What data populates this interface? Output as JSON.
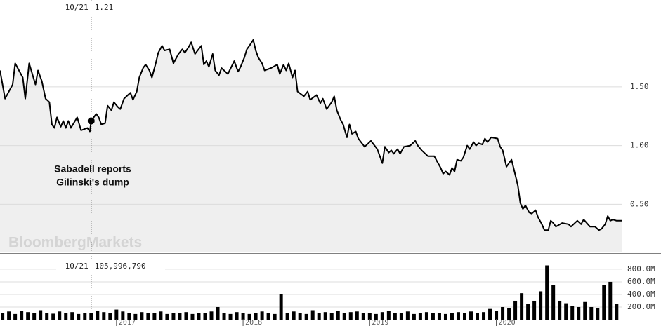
{
  "chart_data": [
    {
      "type": "line",
      "color": "#000000",
      "area_color": "#efefef",
      "grid": true,
      "xlim": [
        2016.08,
        2020.99
      ],
      "ylim": [
        0.09,
        2.24
      ],
      "yticks": [
        {
          "value": 0.5,
          "label": "0.50"
        },
        {
          "value": 1.0,
          "label": "1.00"
        },
        {
          "value": 1.5,
          "label": "1.50"
        }
      ],
      "x": [
        2016.08,
        2016.12,
        2016.18,
        2016.2,
        2016.26,
        2016.28,
        2016.31,
        2016.36,
        2016.38,
        2016.41,
        2016.44,
        2016.47,
        2016.49,
        2016.51,
        2016.53,
        2016.56,
        2016.58,
        2016.6,
        2016.62,
        2016.64,
        2016.69,
        2016.72,
        2016.77,
        2016.79,
        2016.8,
        2016.84,
        2016.86,
        2016.88,
        2016.91,
        2016.93,
        2016.96,
        2016.98,
        2017.01,
        2017.03,
        2017.06,
        2017.09,
        2017.11,
        2017.13,
        2017.16,
        2017.18,
        2017.21,
        2017.23,
        2017.26,
        2017.28,
        2017.31,
        2017.33,
        2017.36,
        2017.38,
        2017.42,
        2017.45,
        2017.49,
        2017.52,
        2017.54,
        2017.57,
        2017.59,
        2017.62,
        2017.67,
        2017.69,
        2017.71,
        2017.73,
        2017.76,
        2017.78,
        2017.81,
        2017.83,
        2017.88,
        2017.93,
        2017.96,
        2017.98,
        2018.01,
        2018.03,
        2018.05,
        2018.08,
        2018.1,
        2018.12,
        2018.15,
        2018.17,
        2018.22,
        2018.27,
        2018.29,
        2018.32,
        2018.34,
        2018.36,
        2018.39,
        2018.41,
        2018.43,
        2018.48,
        2018.51,
        2018.53,
        2018.58,
        2018.61,
        2018.63,
        2018.66,
        2018.7,
        2018.72,
        2018.74,
        2018.77,
        2018.79,
        2018.82,
        2018.84,
        2018.86,
        2018.89,
        2018.91,
        2018.96,
        2019.01,
        2019.06,
        2019.08,
        2019.1,
        2019.12,
        2019.15,
        2019.17,
        2019.19,
        2019.22,
        2019.24,
        2019.27,
        2019.32,
        2019.36,
        2019.38,
        2019.41,
        2019.46,
        2019.51,
        2019.53,
        2019.56,
        2019.58,
        2019.6,
        2019.63,
        2019.65,
        2019.67,
        2019.69,
        2019.72,
        2019.74,
        2019.77,
        2019.79,
        2019.82,
        2019.84,
        2019.86,
        2019.89,
        2019.91,
        2019.93,
        2019.96,
        2020.01,
        2020.03,
        2020.05,
        2020.08,
        2020.1,
        2020.12,
        2020.15,
        2020.17,
        2020.19,
        2020.21,
        2020.23,
        2020.26,
        2020.28,
        2020.31,
        2020.33,
        2020.36,
        2020.38,
        2020.41,
        2020.43,
        2020.45,
        2020.47,
        2020.52,
        2020.57,
        2020.59,
        2020.64,
        2020.67,
        2020.69,
        2020.74,
        2020.78,
        2020.81,
        2020.83,
        2020.86,
        2020.88,
        2020.9,
        2020.92,
        2020.95,
        2020.99
      ],
      "values": [
        1.64,
        1.4,
        1.52,
        1.7,
        1.58,
        1.4,
        1.7,
        1.52,
        1.64,
        1.55,
        1.4,
        1.37,
        1.18,
        1.15,
        1.24,
        1.16,
        1.21,
        1.15,
        1.21,
        1.15,
        1.24,
        1.13,
        1.15,
        1.12,
        1.21,
        1.27,
        1.24,
        1.18,
        1.19,
        1.34,
        1.3,
        1.37,
        1.33,
        1.31,
        1.4,
        1.43,
        1.45,
        1.39,
        1.46,
        1.58,
        1.66,
        1.69,
        1.64,
        1.58,
        1.7,
        1.79,
        1.85,
        1.81,
        1.82,
        1.7,
        1.78,
        1.82,
        1.79,
        1.84,
        1.88,
        1.78,
        1.85,
        1.69,
        1.72,
        1.67,
        1.78,
        1.64,
        1.6,
        1.66,
        1.61,
        1.72,
        1.63,
        1.67,
        1.75,
        1.82,
        1.85,
        1.9,
        1.81,
        1.75,
        1.7,
        1.64,
        1.66,
        1.69,
        1.61,
        1.69,
        1.64,
        1.7,
        1.58,
        1.64,
        1.46,
        1.42,
        1.46,
        1.39,
        1.43,
        1.36,
        1.4,
        1.31,
        1.37,
        1.42,
        1.3,
        1.22,
        1.18,
        1.07,
        1.18,
        1.1,
        1.12,
        1.06,
        0.99,
        1.04,
        0.97,
        0.91,
        0.85,
        0.99,
        0.94,
        0.96,
        0.93,
        0.97,
        0.93,
        0.99,
        1.0,
        1.04,
        1.0,
        0.96,
        0.91,
        0.91,
        0.87,
        0.81,
        0.76,
        0.78,
        0.75,
        0.81,
        0.78,
        0.88,
        0.87,
        0.9,
        1.0,
        0.97,
        1.03,
        1.0,
        1.02,
        1.01,
        1.06,
        1.03,
        1.07,
        1.06,
        0.99,
        0.96,
        0.82,
        0.85,
        0.88,
        0.75,
        0.66,
        0.51,
        0.46,
        0.49,
        0.43,
        0.42,
        0.45,
        0.39,
        0.33,
        0.28,
        0.28,
        0.36,
        0.34,
        0.31,
        0.34,
        0.33,
        0.31,
        0.36,
        0.33,
        0.37,
        0.31,
        0.31,
        0.28,
        0.29,
        0.33,
        0.4,
        0.36,
        0.37,
        0.36,
        0.36
      ],
      "crosshair": {
        "x": 2016.8,
        "y": 1.21,
        "date_label": "10/21",
        "value_label": "1.21"
      },
      "annotation": [
        "Sabadell reports",
        "Gilinski's dump"
      ],
      "watermark": "BloombergMarkets"
    },
    {
      "type": "bar",
      "color": "#000000",
      "xlim": [
        2016.08,
        2020.99
      ],
      "ylim": [
        0,
        1010
      ],
      "yticks": [
        {
          "value": 200,
          "label": "200.0M"
        },
        {
          "value": 400,
          "label": "400.0M"
        },
        {
          "value": 600,
          "label": "600.0M"
        },
        {
          "value": 800,
          "label": "800.0M"
        }
      ],
      "xticks": [
        2017,
        2018,
        2019,
        2020
      ],
      "x": [
        2016.1,
        2016.15,
        2016.2,
        2016.25,
        2016.3,
        2016.35,
        2016.4,
        2016.45,
        2016.5,
        2016.55,
        2016.6,
        2016.65,
        2016.7,
        2016.75,
        2016.8,
        2016.85,
        2016.9,
        2016.95,
        2017.0,
        2017.05,
        2017.1,
        2017.15,
        2017.2,
        2017.25,
        2017.3,
        2017.35,
        2017.4,
        2017.45,
        2017.5,
        2017.55,
        2017.6,
        2017.65,
        2017.7,
        2017.75,
        2017.8,
        2017.85,
        2017.9,
        2017.95,
        2018.0,
        2018.05,
        2018.1,
        2018.15,
        2018.2,
        2018.25,
        2018.3,
        2018.35,
        2018.4,
        2018.45,
        2018.5,
        2018.55,
        2018.6,
        2018.65,
        2018.7,
        2018.75,
        2018.8,
        2018.85,
        2018.9,
        2018.95,
        2019.0,
        2019.05,
        2019.1,
        2019.15,
        2019.2,
        2019.25,
        2019.3,
        2019.35,
        2019.4,
        2019.45,
        2019.5,
        2019.55,
        2019.6,
        2019.65,
        2019.7,
        2019.75,
        2019.8,
        2019.85,
        2019.9,
        2019.95,
        2020.0,
        2020.05,
        2020.1,
        2020.15,
        2020.2,
        2020.25,
        2020.3,
        2020.35,
        2020.4,
        2020.45,
        2020.5,
        2020.55,
        2020.6,
        2020.65,
        2020.7,
        2020.75,
        2020.8,
        2020.85,
        2020.9,
        2020.95
      ],
      "values": [
        110,
        130,
        90,
        140,
        120,
        100,
        150,
        110,
        95,
        130,
        100,
        120,
        90,
        110,
        106,
        140,
        120,
        110,
        160,
        130,
        100,
        90,
        120,
        110,
        100,
        130,
        90,
        110,
        100,
        120,
        90,
        110,
        100,
        130,
        200,
        100,
        90,
        120,
        110,
        90,
        100,
        130,
        110,
        90,
        400,
        100,
        130,
        100,
        90,
        150,
        110,
        120,
        100,
        140,
        110,
        120,
        130,
        100,
        110,
        90,
        120,
        140,
        100,
        110,
        130,
        90,
        100,
        120,
        110,
        100,
        90,
        110,
        120,
        100,
        130,
        110,
        120,
        170,
        140,
        200,
        180,
        300,
        420,
        250,
        300,
        450,
        860,
        550,
        300,
        260,
        220,
        200,
        280,
        200,
        180,
        550,
        600,
        250
      ],
      "crosshair": {
        "x": 2016.8,
        "date_label": "10/21",
        "value_label": "105,996,790"
      }
    }
  ]
}
